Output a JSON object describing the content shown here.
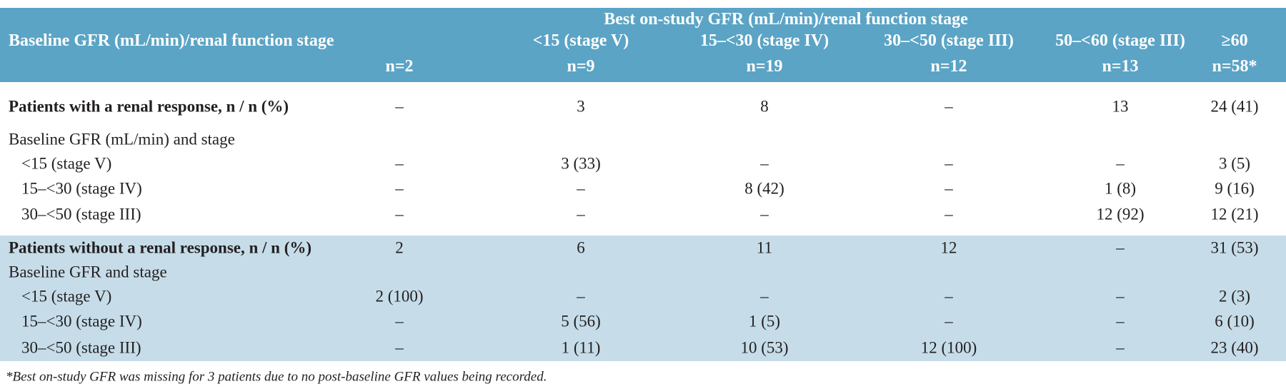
{
  "header": {
    "spanning_title": "Best on-study GFR (mL/min)/renal function stage",
    "row_label": "Baseline GFR (mL/min)/renal function stage",
    "columns": [
      {
        "n": "n=2"
      },
      {
        "stage": "<15 (stage V)",
        "n": "n=9"
      },
      {
        "stage": "15–<30 (stage IV)",
        "n": "n=19"
      },
      {
        "stage": "30–<50 (stage III)",
        "n": "n=12"
      },
      {
        "stage": "50–<60 (stage III)",
        "n": "n=13"
      },
      {
        "stage": "≥60",
        "n": "n=58*"
      }
    ]
  },
  "sections": [
    {
      "title": "Patients with a renal response, n / n (%)",
      "cells": [
        "–",
        "3",
        "8",
        "–",
        "13",
        "24 (41)"
      ],
      "subheading": "Baseline GFR (mL/min) and stage",
      "rows": [
        {
          "label": "<15 (stage V)",
          "cells": [
            "–",
            "3 (33)",
            "–",
            "–",
            "–",
            "3 (5)"
          ]
        },
        {
          "label": "15–<30 (stage IV)",
          "cells": [
            "–",
            "–",
            "8 (42)",
            "–",
            "1 (8)",
            "9 (16)"
          ]
        },
        {
          "label": "30–<50 (stage III)",
          "cells": [
            "–",
            "–",
            "–",
            "–",
            "12 (92)",
            "12 (21)"
          ]
        }
      ]
    },
    {
      "title": "Patients without a renal response, n / n (%)",
      "cells": [
        "2",
        "6",
        "11",
        "12",
        "–",
        "31 (53)"
      ],
      "subheading": "Baseline GFR and stage",
      "rows": [
        {
          "label": "<15 (stage V)",
          "cells": [
            "2 (100)",
            "–",
            "–",
            "–",
            "–",
            "2 (3)"
          ]
        },
        {
          "label": "15–<30 (stage IV)",
          "cells": [
            "–",
            "5 (56)",
            "1 (5)",
            "–",
            "–",
            "6 (10)"
          ]
        },
        {
          "label": "30–<50 (stage III)",
          "cells": [
            "–",
            "1 (11)",
            "10 (53)",
            "12 (100)",
            "–",
            "23 (40)"
          ]
        }
      ]
    }
  ],
  "footnote": "*Best on-study GFR was missing for 3 patients due to no post-baseline GFR values being recorded."
}
